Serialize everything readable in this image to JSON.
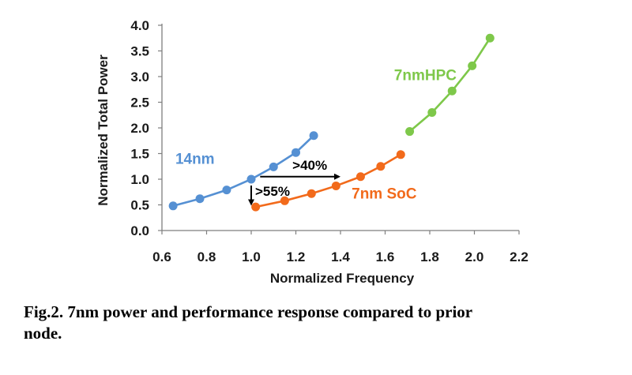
{
  "chart_data": {
    "type": "line",
    "xlabel": "Normalized Frequency",
    "ylabel": "Normalized Total Power",
    "xlim": [
      0.6,
      2.2
    ],
    "ylim": [
      0.0,
      4.0
    ],
    "x_ticks": [
      "0.6",
      "0.8",
      "1.0",
      "1.2",
      "1.4",
      "1.6",
      "1.8",
      "2.0",
      "2.2"
    ],
    "y_ticks": [
      "0.0",
      "0.5",
      "1.0",
      "1.5",
      "2.0",
      "2.5",
      "3.0",
      "3.5",
      "4.0"
    ],
    "grid": false,
    "series": [
      {
        "name": "14nm",
        "color": "#5590d3",
        "x": [
          0.65,
          0.77,
          0.89,
          1.0,
          1.1,
          1.2,
          1.28
        ],
        "y": [
          0.48,
          0.62,
          0.79,
          1.0,
          1.24,
          1.52,
          1.85
        ]
      },
      {
        "name": "7nm SoC",
        "color": "#f26a1b",
        "x": [
          1.02,
          1.15,
          1.27,
          1.38,
          1.49,
          1.58,
          1.67
        ],
        "y": [
          0.46,
          0.58,
          0.72,
          0.87,
          1.05,
          1.25,
          1.48
        ]
      },
      {
        "name": "7nmHPC",
        "color": "#7ec84a",
        "x": [
          1.71,
          1.81,
          1.9,
          1.99,
          2.07
        ],
        "y": [
          1.93,
          2.3,
          2.72,
          3.21,
          3.75
        ]
      }
    ],
    "annotations": [
      {
        "text": ">40%",
        "x_from": 1.04,
        "x_to": 1.4,
        "y": 1.05
      },
      {
        "text": ">55%",
        "x": 1.0,
        "y_from": 1.0,
        "y_to": 0.5
      }
    ]
  },
  "caption": {
    "line1": "Fig.2.   7nm power and performance response compared to prior",
    "line2": "node."
  }
}
